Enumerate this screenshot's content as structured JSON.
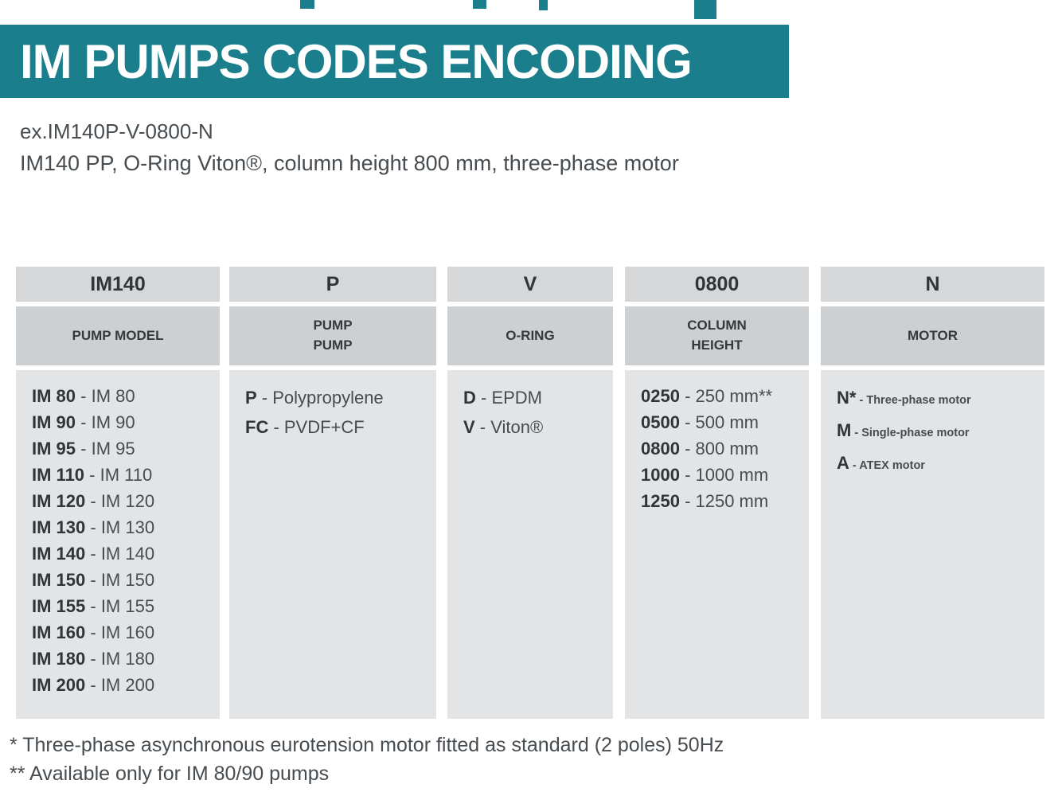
{
  "colors": {
    "banner_teal": "#1a7e8c",
    "header_gray": "#d6d7d8",
    "label_gray": "#cdd0d2",
    "body_gray": "#e3e4e5"
  },
  "banner": {
    "title": "IM PUMPS CODES ENCODING"
  },
  "example": {
    "code": "ex.IM140P-V-0800-N",
    "description": "IM140 PP, O-Ring Viton®, column height 800 mm, three-phase motor"
  },
  "table": {
    "columns": [
      {
        "code": "IM140",
        "label": "PUMP MODEL",
        "items": [
          {
            "code": "IM 80",
            "desc": "IM 80"
          },
          {
            "code": "IM 90",
            "desc": "IM 90"
          },
          {
            "code": "IM 95",
            "desc": "IM 95"
          },
          {
            "code": "IM 110",
            "desc": "IM 110"
          },
          {
            "code": "IM 120",
            "desc": "IM 120"
          },
          {
            "code": "IM 130",
            "desc": "IM 130"
          },
          {
            "code": "IM 140",
            "desc": "IM 140"
          },
          {
            "code": "IM 150",
            "desc": "IM 150"
          },
          {
            "code": "IM 155",
            "desc": "IM 155"
          },
          {
            "code": "IM 160",
            "desc": "IM 160"
          },
          {
            "code": "IM 180",
            "desc": "IM 180"
          },
          {
            "code": "IM 200",
            "desc": "IM 200"
          }
        ]
      },
      {
        "code": "P",
        "label": "PUMP\nPUMP",
        "items": [
          {
            "code": "P",
            "desc": "Polypropylene"
          },
          {
            "code": "FC",
            "desc": "PVDF+CF"
          }
        ]
      },
      {
        "code": "V",
        "label": "O-RING",
        "items": [
          {
            "code": "D",
            "desc": "EPDM"
          },
          {
            "code": "V",
            "desc": "Viton®"
          }
        ]
      },
      {
        "code": "0800",
        "label": "COLUMN\nHEIGHT",
        "items": [
          {
            "code": "0250",
            "desc": "250 mm**"
          },
          {
            "code": "0500",
            "desc": "500 mm"
          },
          {
            "code": "0800",
            "desc": "800 mm"
          },
          {
            "code": "1000",
            "desc": "1000 mm"
          },
          {
            "code": "1250",
            "desc": "1250 mm"
          }
        ]
      },
      {
        "code": "N",
        "label": "MOTOR",
        "items": [
          {
            "code": "N*",
            "desc": "Three-phase motor"
          },
          {
            "code": "M",
            "desc": "Single-phase motor"
          },
          {
            "code": "A",
            "desc": "ATEX motor"
          }
        ]
      }
    ]
  },
  "footnotes": [
    "* Three-phase asynchronous eurotension motor fitted as standard (2 poles) 50Hz",
    "** Available only for IM 80/90 pumps"
  ]
}
